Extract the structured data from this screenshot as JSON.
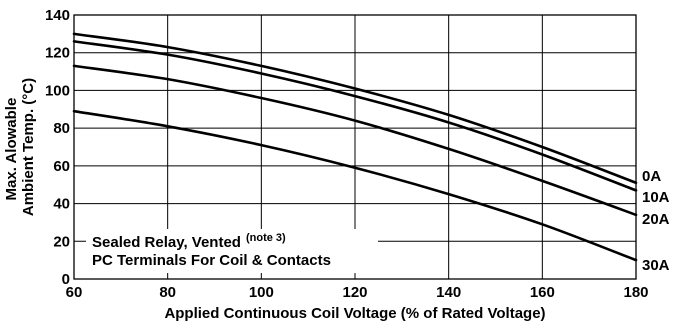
{
  "chart_data": {
    "type": "line",
    "xlabel": "Applied Continuous Coil Voltage (% of Rated Voltage)",
    "ylabel_lines": [
      "Max. Alowable",
      "Ambient Temp. (°C)"
    ],
    "xlim": [
      60,
      180
    ],
    "ylim": [
      0,
      140
    ],
    "x_ticks": [
      60,
      80,
      100,
      120,
      140,
      160,
      180
    ],
    "y_ticks": [
      0,
      20,
      40,
      60,
      80,
      100,
      120,
      140
    ],
    "grid": true,
    "annotation": {
      "line1": "Sealed Relay, Vented",
      "line1_note": "(note 3)",
      "line2": "PC Terminals For Coil & Contacts"
    },
    "series": [
      {
        "name": "0A",
        "x": [
          60,
          80,
          100,
          120,
          140,
          160,
          180
        ],
        "y": [
          130,
          123,
          113,
          101,
          87,
          70,
          51
        ]
      },
      {
        "name": "10A",
        "x": [
          60,
          80,
          100,
          120,
          140,
          160,
          180
        ],
        "y": [
          126,
          119,
          109,
          97,
          83,
          66,
          47
        ]
      },
      {
        "name": "20A",
        "x": [
          60,
          80,
          100,
          120,
          140,
          160,
          180
        ],
        "y": [
          113,
          106,
          96,
          84,
          69,
          52,
          34
        ]
      },
      {
        "name": "30A",
        "x": [
          60,
          80,
          100,
          120,
          140,
          160,
          180
        ],
        "y": [
          89,
          81,
          71,
          59,
          45,
          29,
          10
        ]
      }
    ]
  }
}
